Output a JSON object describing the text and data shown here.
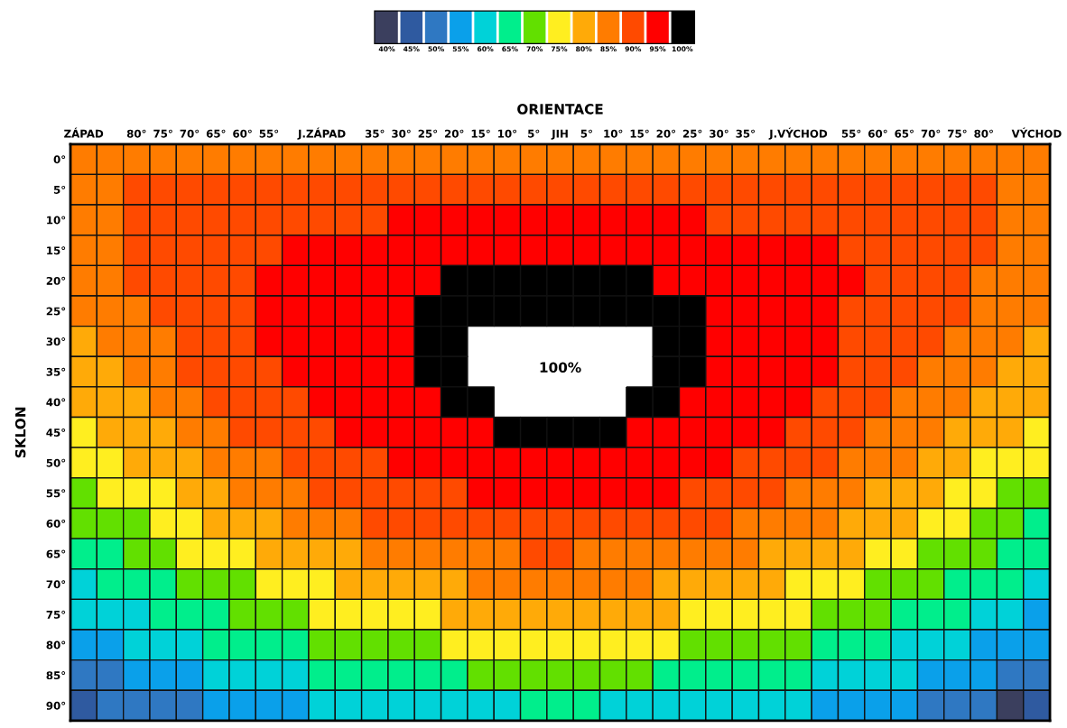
{
  "chart_data": {
    "type": "heatmap",
    "title": "ORIENTACE",
    "ylabel": "SKLON",
    "categories": [
      "ZÁPAD",
      null,
      "80°",
      "75°",
      "70°",
      "65°",
      "60°",
      "55°",
      null,
      "J.ZÁPAD",
      null,
      "35°",
      "30°",
      "25°",
      "20°",
      "15°",
      "10°",
      "5°",
      "JIH",
      "5°",
      "10°",
      "15°",
      "20°",
      "25°",
      "30°",
      "35°",
      null,
      "J.VÝCHOD",
      null,
      "55°",
      "60°",
      "65°",
      "70°",
      "75°",
      "80°",
      null,
      "VÝCHOD"
    ],
    "y_categories": [
      "0°",
      "5°",
      "10°",
      "15°",
      "20°",
      "25°",
      "30°",
      "35°",
      "40°",
      "45°",
      "50°",
      "55°",
      "60°",
      "65°",
      "70°",
      "75°",
      "80°",
      "85°",
      "90°"
    ],
    "cells": [
      [
        85,
        85,
        85,
        85,
        85,
        85,
        85,
        85,
        85,
        85,
        85,
        85,
        85,
        85,
        85,
        85,
        85,
        85,
        85,
        85,
        85,
        85,
        85,
        85,
        85,
        85,
        85,
        85,
        85,
        85,
        85,
        85,
        85,
        85,
        85,
        85,
        85
      ],
      [
        85,
        85,
        90,
        90,
        90,
        90,
        90,
        90,
        90,
        90,
        90,
        90,
        90,
        90,
        90,
        90,
        90,
        90,
        90,
        90,
        90,
        90,
        90,
        90,
        90,
        90,
        90,
        90,
        90,
        90,
        90,
        90,
        90,
        90,
        90,
        85,
        85
      ],
      [
        85,
        85,
        90,
        90,
        90,
        90,
        90,
        90,
        90,
        90,
        90,
        90,
        95,
        95,
        95,
        95,
        95,
        95,
        95,
        95,
        95,
        95,
        95,
        95,
        90,
        90,
        90,
        90,
        90,
        90,
        90,
        90,
        90,
        90,
        90,
        85,
        85
      ],
      [
        85,
        85,
        90,
        90,
        90,
        90,
        90,
        90,
        95,
        95,
        95,
        95,
        95,
        95,
        95,
        95,
        95,
        95,
        95,
        95,
        95,
        95,
        95,
        95,
        95,
        95,
        95,
        95,
        95,
        90,
        90,
        90,
        90,
        90,
        90,
        85,
        85
      ],
      [
        85,
        85,
        90,
        90,
        90,
        90,
        90,
        95,
        95,
        95,
        95,
        95,
        95,
        95,
        100,
        100,
        100,
        100,
        100,
        100,
        100,
        100,
        95,
        95,
        95,
        95,
        95,
        95,
        95,
        95,
        90,
        90,
        90,
        90,
        85,
        85,
        85
      ],
      [
        85,
        85,
        85,
        90,
        90,
        90,
        90,
        95,
        95,
        95,
        95,
        95,
        95,
        100,
        100,
        100,
        100,
        100,
        100,
        100,
        100,
        100,
        100,
        100,
        95,
        95,
        95,
        95,
        95,
        90,
        90,
        90,
        90,
        90,
        85,
        85,
        85
      ],
      [
        80,
        85,
        85,
        85,
        90,
        90,
        90,
        95,
        95,
        95,
        95,
        95,
        95,
        100,
        100,
        null,
        null,
        null,
        null,
        null,
        null,
        null,
        100,
        100,
        95,
        95,
        95,
        95,
        95,
        90,
        90,
        90,
        90,
        85,
        85,
        85,
        80
      ],
      [
        80,
        80,
        85,
        85,
        90,
        90,
        90,
        90,
        95,
        95,
        95,
        95,
        95,
        100,
        100,
        null,
        null,
        null,
        null,
        null,
        null,
        null,
        100,
        100,
        95,
        95,
        95,
        95,
        95,
        90,
        90,
        90,
        85,
        85,
        85,
        80,
        80
      ],
      [
        80,
        80,
        80,
        85,
        85,
        90,
        90,
        90,
        90,
        95,
        95,
        95,
        95,
        95,
        100,
        100,
        null,
        null,
        null,
        null,
        null,
        100,
        100,
        95,
        95,
        95,
        95,
        95,
        90,
        90,
        90,
        85,
        85,
        85,
        80,
        80,
        80
      ],
      [
        75,
        80,
        80,
        80,
        85,
        85,
        90,
        90,
        90,
        90,
        95,
        95,
        95,
        95,
        95,
        95,
        100,
        100,
        100,
        100,
        100,
        95,
        95,
        95,
        95,
        95,
        95,
        90,
        90,
        90,
        85,
        85,
        85,
        80,
        80,
        80,
        75
      ],
      [
        75,
        75,
        80,
        80,
        80,
        85,
        85,
        85,
        90,
        90,
        90,
        90,
        95,
        95,
        95,
        95,
        95,
        95,
        95,
        95,
        95,
        95,
        95,
        95,
        95,
        90,
        90,
        90,
        90,
        85,
        85,
        85,
        80,
        80,
        75,
        75,
        75
      ],
      [
        70,
        75,
        75,
        75,
        80,
        80,
        85,
        85,
        85,
        90,
        90,
        90,
        90,
        90,
        90,
        95,
        95,
        95,
        95,
        95,
        95,
        95,
        95,
        90,
        90,
        90,
        90,
        85,
        85,
        85,
        80,
        80,
        80,
        75,
        75,
        70,
        70
      ],
      [
        70,
        70,
        70,
        75,
        75,
        80,
        80,
        80,
        85,
        85,
        85,
        90,
        90,
        90,
        90,
        90,
        90,
        90,
        90,
        90,
        90,
        90,
        90,
        90,
        90,
        85,
        85,
        85,
        85,
        80,
        80,
        80,
        75,
        75,
        70,
        70,
        65
      ],
      [
        65,
        65,
        70,
        70,
        75,
        75,
        75,
        80,
        80,
        80,
        80,
        85,
        85,
        85,
        85,
        85,
        85,
        90,
        90,
        85,
        85,
        85,
        85,
        85,
        85,
        85,
        80,
        80,
        80,
        80,
        75,
        75,
        70,
        70,
        70,
        65,
        65
      ],
      [
        60,
        65,
        65,
        65,
        70,
        70,
        70,
        75,
        75,
        75,
        80,
        80,
        80,
        80,
        80,
        85,
        85,
        85,
        85,
        85,
        85,
        85,
        80,
        80,
        80,
        80,
        80,
        75,
        75,
        75,
        70,
        70,
        70,
        65,
        65,
        65,
        60
      ],
      [
        60,
        60,
        60,
        65,
        65,
        65,
        70,
        70,
        70,
        75,
        75,
        75,
        75,
        75,
        80,
        80,
        80,
        80,
        80,
        80,
        80,
        80,
        80,
        75,
        75,
        75,
        75,
        75,
        70,
        70,
        70,
        65,
        65,
        65,
        60,
        60,
        55
      ],
      [
        55,
        55,
        60,
        60,
        60,
        65,
        65,
        65,
        65,
        70,
        70,
        70,
        70,
        70,
        75,
        75,
        75,
        75,
        75,
        75,
        75,
        75,
        75,
        70,
        70,
        70,
        70,
        70,
        65,
        65,
        65,
        60,
        60,
        60,
        55,
        55,
        55
      ],
      [
        50,
        50,
        55,
        55,
        55,
        60,
        60,
        60,
        60,
        65,
        65,
        65,
        65,
        65,
        65,
        70,
        70,
        70,
        70,
        70,
        70,
        70,
        65,
        65,
        65,
        65,
        65,
        65,
        60,
        60,
        60,
        60,
        55,
        55,
        55,
        50,
        50
      ],
      [
        45,
        50,
        50,
        50,
        50,
        55,
        55,
        55,
        55,
        60,
        60,
        60,
        60,
        60,
        60,
        60,
        60,
        65,
        65,
        65,
        60,
        60,
        60,
        60,
        60,
        60,
        60,
        60,
        55,
        55,
        55,
        55,
        50,
        50,
        50,
        40,
        45
      ]
    ],
    "colors": [
      "#3b3f5e",
      "#2f5aa0",
      "#2f78c2",
      "#0aa0ea",
      "#00d2d8",
      "#00ee8c",
      "#62e000",
      "#ffee20",
      "#ffaa08",
      "#ff7c00",
      "#ff4a00",
      "#ff0000",
      "#000000"
    ],
    "clim": [
      37.5,
      102.5
    ],
    "cticks": [
      {
        "value": 40,
        "label": "40%"
      },
      {
        "value": 45,
        "label": "45%"
      },
      {
        "value": 50,
        "label": "50%"
      },
      {
        "value": 55,
        "label": "55%"
      },
      {
        "value": 60,
        "label": "60%"
      },
      {
        "value": 65,
        "label": "65%"
      },
      {
        "value": 70,
        "label": "70%"
      },
      {
        "value": 75,
        "label": "75%"
      },
      {
        "value": 80,
        "label": "80%"
      },
      {
        "value": 85,
        "label": "85%"
      },
      {
        "value": 90,
        "label": "90%"
      },
      {
        "value": 95,
        "label": "95%"
      },
      {
        "value": 100,
        "label": "100%"
      }
    ],
    "annotations": [
      "100%"
    ]
  }
}
